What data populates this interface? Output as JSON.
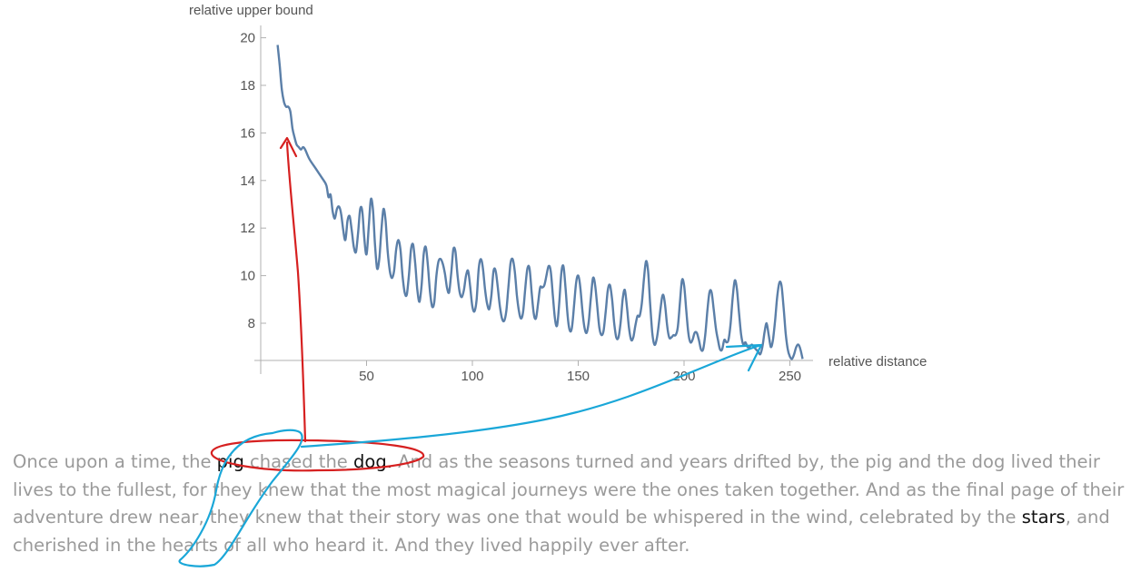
{
  "chart_data": {
    "type": "line",
    "xlabel": "relative distance",
    "ylabel": "relative upper bound",
    "xlim": [
      0,
      262
    ],
    "ylim": [
      6.5,
      20.5
    ],
    "x_ticks": [
      50,
      100,
      150,
      200,
      250
    ],
    "y_ticks": [
      8,
      10,
      12,
      14,
      16,
      18,
      20
    ],
    "series": [
      {
        "color": "#5b7fa8",
        "points": [
          [
            8,
            19.7
          ],
          [
            9,
            18.8
          ],
          [
            10,
            17.8
          ],
          [
            11,
            17.3
          ],
          [
            12,
            17.1
          ],
          [
            13,
            17.1
          ],
          [
            14,
            16.9
          ],
          [
            15,
            16.2
          ],
          [
            16,
            15.8
          ],
          [
            17,
            15.5
          ],
          [
            18,
            15.4
          ],
          [
            19,
            15.3
          ],
          [
            20,
            15.4
          ],
          [
            21,
            15.3
          ],
          [
            23,
            14.9
          ],
          [
            26,
            14.5
          ],
          [
            29,
            14.1
          ],
          [
            31,
            13.8
          ],
          [
            32,
            13.3
          ],
          [
            33,
            13.4
          ],
          [
            34,
            12.7
          ],
          [
            35,
            12.4
          ],
          [
            36,
            12.8
          ],
          [
            37,
            12.9
          ],
          [
            38,
            12.6
          ],
          [
            39,
            11.9
          ],
          [
            40,
            11.5
          ],
          [
            41,
            12.3
          ],
          [
            42,
            12.5
          ],
          [
            43,
            11.9
          ],
          [
            44,
            11.2
          ],
          [
            45,
            11.0
          ],
          [
            46,
            11.8
          ],
          [
            47,
            12.8
          ],
          [
            48,
            12.7
          ],
          [
            49,
            11.5
          ],
          [
            50,
            10.9
          ],
          [
            51,
            12.0
          ],
          [
            52,
            13.2
          ],
          [
            53,
            12.8
          ],
          [
            54,
            11.3
          ],
          [
            55,
            10.3
          ],
          [
            56,
            10.7
          ],
          [
            57,
            11.9
          ],
          [
            58,
            12.8
          ],
          [
            59,
            12.3
          ],
          [
            60,
            11.0
          ],
          [
            61,
            10.2
          ],
          [
            62,
            9.9
          ],
          [
            63,
            10.2
          ],
          [
            64,
            11.1
          ],
          [
            65,
            11.5
          ],
          [
            66,
            11.1
          ],
          [
            67,
            10.0
          ],
          [
            68,
            9.3
          ],
          [
            69,
            9.2
          ],
          [
            70,
            10.0
          ],
          [
            71,
            11.1
          ],
          [
            72,
            11.3
          ],
          [
            73,
            10.5
          ],
          [
            74,
            9.4
          ],
          [
            75,
            8.9
          ],
          [
            76,
            9.6
          ],
          [
            77,
            10.9
          ],
          [
            78,
            11.2
          ],
          [
            79,
            10.4
          ],
          [
            80,
            9.3
          ],
          [
            81,
            8.7
          ],
          [
            82,
            8.9
          ],
          [
            83,
            10.0
          ],
          [
            84,
            10.6
          ],
          [
            85,
            10.7
          ],
          [
            86,
            10.5
          ],
          [
            87,
            10.1
          ],
          [
            88,
            9.5
          ],
          [
            89,
            9.3
          ],
          [
            90,
            10.1
          ],
          [
            91,
            11.1
          ],
          [
            92,
            11.0
          ],
          [
            93,
            10.0
          ],
          [
            94,
            9.3
          ],
          [
            95,
            9.1
          ],
          [
            96,
            9.4
          ],
          [
            97,
            10.0
          ],
          [
            98,
            10.2
          ],
          [
            99,
            9.5
          ],
          [
            100,
            8.7
          ],
          [
            101,
            8.5
          ],
          [
            102,
            9.0
          ],
          [
            103,
            10.3
          ],
          [
            104,
            10.7
          ],
          [
            105,
            10.3
          ],
          [
            106,
            9.4
          ],
          [
            107,
            8.8
          ],
          [
            108,
            8.6
          ],
          [
            109,
            9.2
          ],
          [
            110,
            10.2
          ],
          [
            111,
            10.2
          ],
          [
            112,
            9.5
          ],
          [
            113,
            8.7
          ],
          [
            114,
            8.2
          ],
          [
            115,
            8.1
          ],
          [
            116,
            8.5
          ],
          [
            117,
            9.5
          ],
          [
            118,
            10.5
          ],
          [
            119,
            10.7
          ],
          [
            120,
            10.2
          ],
          [
            121,
            9.2
          ],
          [
            122,
            8.5
          ],
          [
            123,
            8.2
          ],
          [
            124,
            8.5
          ],
          [
            125,
            9.5
          ],
          [
            126,
            10.3
          ],
          [
            127,
            10.3
          ],
          [
            128,
            9.3
          ],
          [
            129,
            8.4
          ],
          [
            130,
            8.2
          ],
          [
            131,
            8.8
          ],
          [
            132,
            9.5
          ],
          [
            133,
            9.5
          ],
          [
            134,
            9.6
          ],
          [
            135,
            10.0
          ],
          [
            136,
            10.4
          ],
          [
            137,
            10.2
          ],
          [
            138,
            9.2
          ],
          [
            139,
            8.2
          ],
          [
            140,
            7.9
          ],
          [
            141,
            8.8
          ],
          [
            142,
            10.1
          ],
          [
            143,
            10.4
          ],
          [
            144,
            9.5
          ],
          [
            145,
            8.3
          ],
          [
            146,
            7.7
          ],
          [
            147,
            7.8
          ],
          [
            148,
            8.7
          ],
          [
            149,
            9.7
          ],
          [
            150,
            10.0
          ],
          [
            151,
            9.5
          ],
          [
            152,
            8.5
          ],
          [
            153,
            7.8
          ],
          [
            154,
            7.6
          ],
          [
            155,
            8.1
          ],
          [
            156,
            9.1
          ],
          [
            157,
            9.9
          ],
          [
            158,
            9.6
          ],
          [
            159,
            8.7
          ],
          [
            160,
            7.8
          ],
          [
            161,
            7.5
          ],
          [
            162,
            7.7
          ],
          [
            163,
            8.5
          ],
          [
            164,
            9.4
          ],
          [
            165,
            9.6
          ],
          [
            166,
            9.0
          ],
          [
            167,
            8.0
          ],
          [
            168,
            7.4
          ],
          [
            169,
            7.4
          ],
          [
            170,
            8.0
          ],
          [
            171,
            9.0
          ],
          [
            172,
            9.4
          ],
          [
            173,
            8.7
          ],
          [
            174,
            7.8
          ],
          [
            175,
            7.3
          ],
          [
            176,
            7.4
          ],
          [
            177,
            7.9
          ],
          [
            178,
            8.3
          ],
          [
            179,
            8.3
          ],
          [
            180,
            8.8
          ],
          [
            181,
            9.8
          ],
          [
            182,
            10.6
          ],
          [
            183,
            10.2
          ],
          [
            184,
            8.8
          ],
          [
            185,
            7.6
          ],
          [
            186,
            7.1
          ],
          [
            187,
            7.3
          ],
          [
            188,
            7.9
          ],
          [
            189,
            8.7
          ],
          [
            190,
            9.2
          ],
          [
            191,
            8.8
          ],
          [
            192,
            7.9
          ],
          [
            193,
            7.4
          ],
          [
            194,
            7.4
          ],
          [
            195,
            7.5
          ],
          [
            196,
            7.5
          ],
          [
            197,
            7.8
          ],
          [
            198,
            8.8
          ],
          [
            199,
            9.8
          ],
          [
            200,
            9.6
          ],
          [
            201,
            8.6
          ],
          [
            202,
            7.6
          ],
          [
            203,
            7.2
          ],
          [
            204,
            7.3
          ],
          [
            205,
            7.6
          ],
          [
            206,
            7.6
          ],
          [
            207,
            7.3
          ],
          [
            208,
            6.9
          ],
          [
            209,
            6.9
          ],
          [
            210,
            7.5
          ],
          [
            211,
            8.5
          ],
          [
            212,
            9.3
          ],
          [
            213,
            9.3
          ],
          [
            214,
            8.6
          ],
          [
            215,
            7.8
          ],
          [
            216,
            7.3
          ],
          [
            217,
            6.9
          ],
          [
            218,
            6.9
          ],
          [
            219,
            7.3
          ],
          [
            220,
            7.2
          ],
          [
            221,
            7.3
          ],
          [
            222,
            8.0
          ],
          [
            223,
            9.1
          ],
          [
            224,
            9.8
          ],
          [
            225,
            9.4
          ],
          [
            226,
            8.4
          ],
          [
            227,
            7.5
          ],
          [
            228,
            7.1
          ],
          [
            229,
            7.2
          ],
          [
            230,
            7.0
          ],
          [
            231,
            7.0
          ],
          [
            232,
            7.1
          ],
          [
            233,
            7.0
          ],
          [
            234,
            6.9
          ],
          [
            235,
            6.8
          ],
          [
            236,
            6.7
          ],
          [
            237,
            7.0
          ],
          [
            238,
            7.6
          ],
          [
            239,
            8.0
          ],
          [
            240,
            7.5
          ],
          [
            241,
            7.0
          ],
          [
            242,
            7.3
          ],
          [
            243,
            8.1
          ],
          [
            244,
            9.1
          ],
          [
            245,
            9.7
          ],
          [
            246,
            9.6
          ],
          [
            247,
            8.7
          ],
          [
            248,
            7.6
          ],
          [
            249,
            6.9
          ],
          [
            250,
            6.6
          ],
          [
            251,
            6.5
          ],
          [
            252,
            6.7
          ],
          [
            253,
            7.0
          ],
          [
            254,
            7.1
          ],
          [
            255,
            6.9
          ],
          [
            256,
            6.5
          ]
        ]
      }
    ],
    "grid": false,
    "legend": "none"
  },
  "story": {
    "seg1": "Once upon a time, the ",
    "word_pig": "pig",
    "seg2": " chased the ",
    "word_dog": "dog.",
    "seg3": " And as the seasons turned and years drifted by, the pig and the dog lived their lives to the fullest, for they knew that the most magical journeys were the ones taken together. And as the final page of their adventure drew near, they knew that their story was one that would be whispered in the wind, celebrated by the ",
    "word_stars": "stars",
    "seg4": ", and cherished in the hearts of all who heard it. And they lived happily ever after."
  },
  "annotation_colors": {
    "red": "#d62020",
    "blue": "#1aa7d8"
  }
}
